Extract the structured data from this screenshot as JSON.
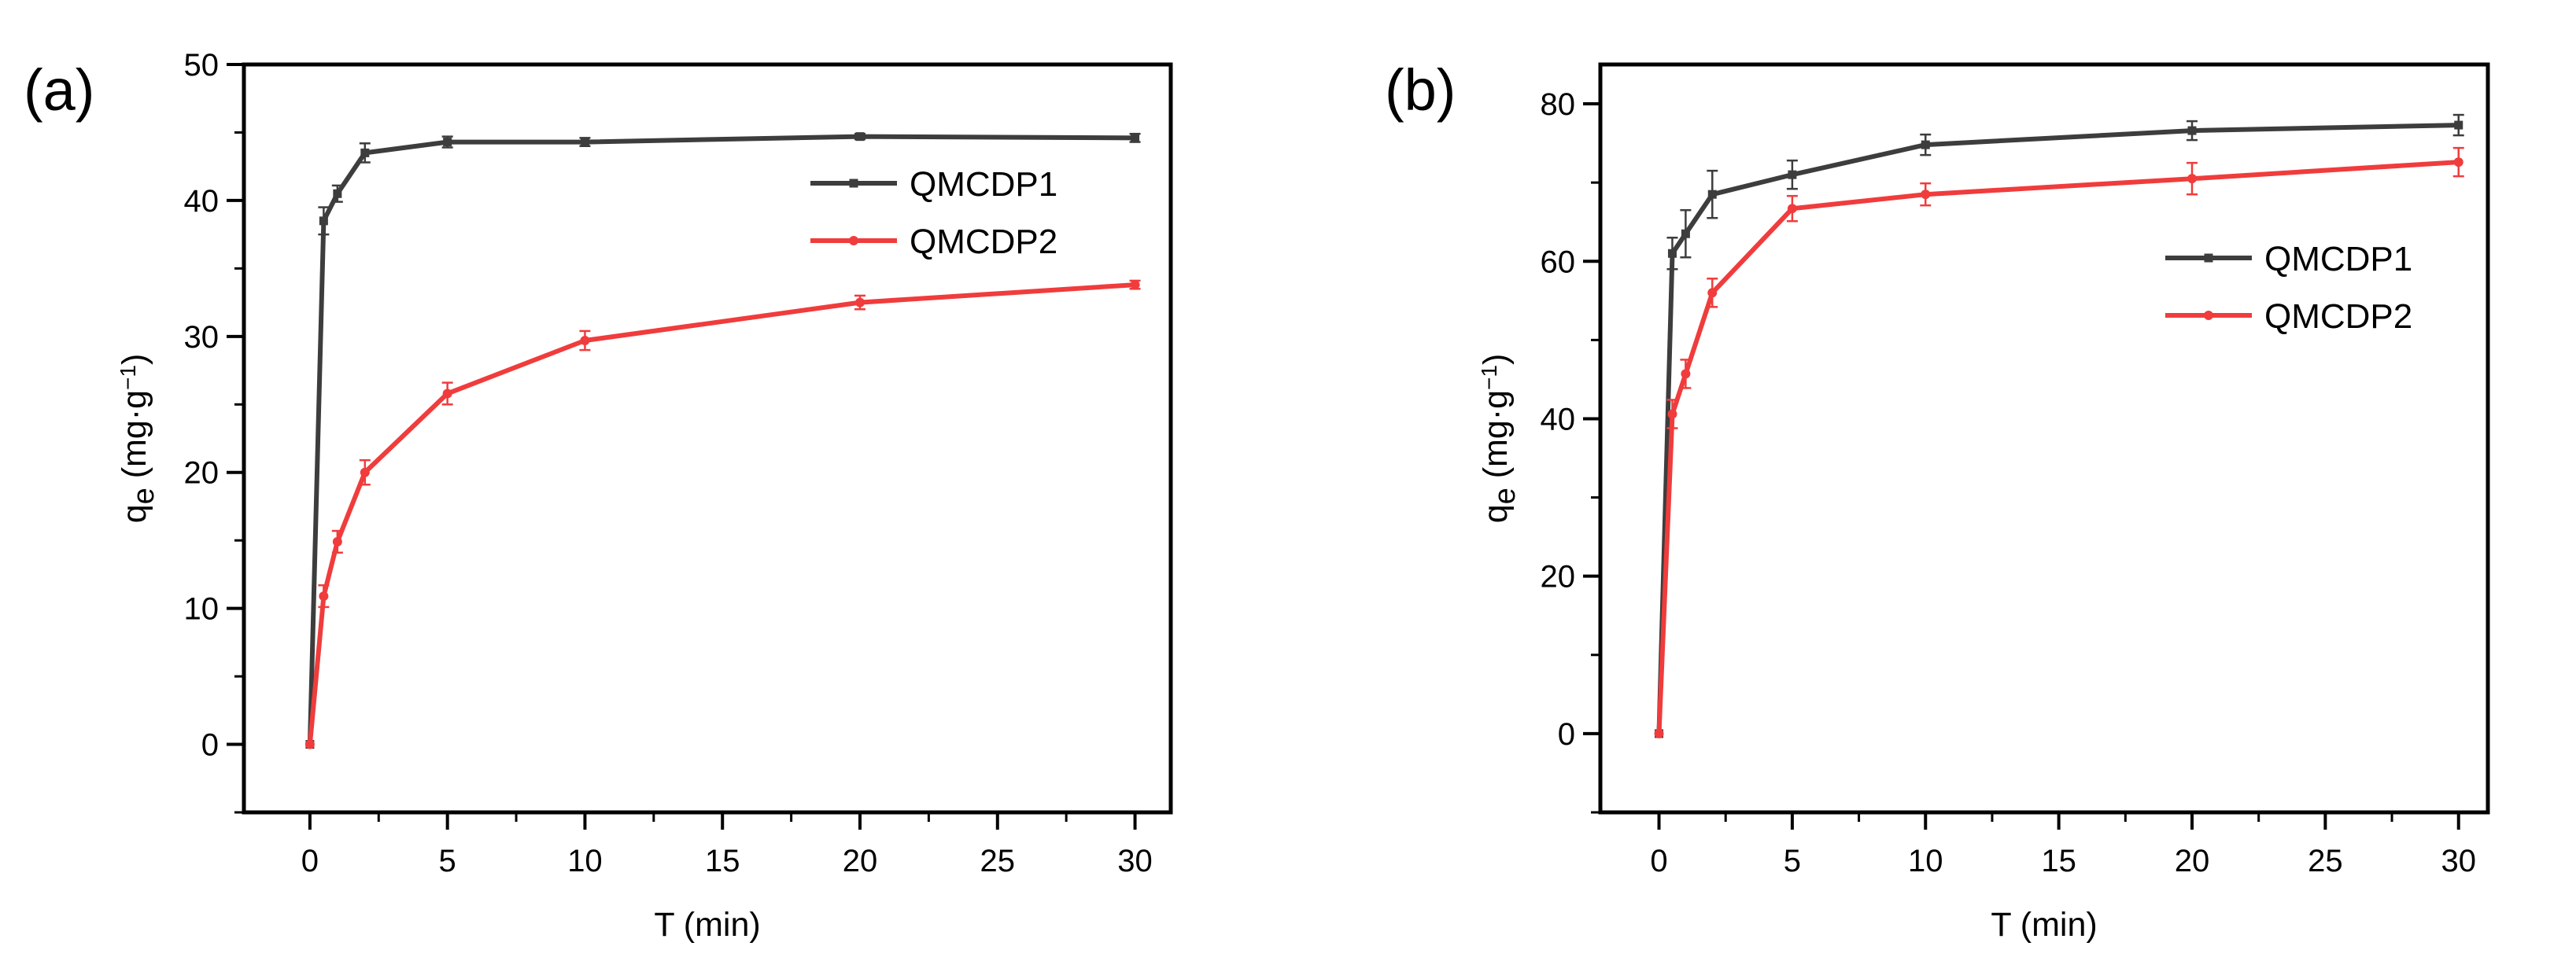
{
  "chart_data": [
    {
      "type": "line",
      "panel_label": "(a)",
      "xlabel": "T (min)",
      "ylabel": {
        "main": "q",
        "subscript": "e",
        "unit_open": " (mg·g",
        "unit_sup": "−1",
        "unit_close": ")"
      },
      "xlim": [
        -2.4,
        31.3
      ],
      "ylim": [
        -5,
        50
      ],
      "x_ticks": [
        0,
        5,
        10,
        15,
        20,
        25,
        30
      ],
      "y_ticks": [
        0,
        10,
        20,
        30,
        40,
        50
      ],
      "legend_position": "top-right",
      "series": [
        {
          "name": "QMCDP1",
          "color": "#3d3d3d",
          "marker": "square",
          "x": [
            0,
            0.5,
            1,
            2,
            5,
            10,
            20,
            30
          ],
          "y": [
            0,
            38.5,
            40.5,
            43.5,
            44.3,
            44.3,
            44.7,
            44.6
          ],
          "err": [
            0,
            1.0,
            0.6,
            0.7,
            0.4,
            0.3,
            0.2,
            0.3
          ]
        },
        {
          "name": "QMCDP2",
          "color": "#f03c3c",
          "marker": "circle",
          "x": [
            0,
            0.5,
            1,
            2,
            5,
            10,
            20,
            30
          ],
          "y": [
            0,
            10.9,
            14.9,
            20,
            25.8,
            29.7,
            32.5,
            33.8
          ],
          "err": [
            0,
            0.8,
            0.8,
            0.9,
            0.8,
            0.7,
            0.5,
            0.3
          ]
        }
      ]
    },
    {
      "type": "line",
      "panel_label": "(b)",
      "xlabel": "T (min)",
      "ylabel": {
        "main": "q",
        "subscript": "e",
        "unit_open": " (mg·g",
        "unit_sup": "−1",
        "unit_close": ")"
      },
      "xlim": [
        -2.2,
        31.1
      ],
      "ylim": [
        -10,
        85
      ],
      "x_ticks": [
        0,
        5,
        10,
        15,
        20,
        25,
        30
      ],
      "y_ticks": [
        0,
        20,
        40,
        60,
        80
      ],
      "legend_position": "upper-right",
      "series": [
        {
          "name": "QMCDP1",
          "color": "#3d3d3d",
          "marker": "square",
          "x": [
            0,
            0.5,
            1,
            2,
            5,
            10,
            20,
            30
          ],
          "y": [
            0,
            61,
            63.5,
            68.5,
            71,
            74.8,
            76.6,
            77.3
          ],
          "err": [
            0,
            2.0,
            3.0,
            3.0,
            1.8,
            1.3,
            1.2,
            1.3
          ]
        },
        {
          "name": "QMCDP2",
          "color": "#f03c3c",
          "marker": "circle",
          "x": [
            0,
            0.5,
            1,
            2,
            5,
            10,
            20,
            30
          ],
          "y": [
            0,
            40.6,
            45.7,
            56,
            66.7,
            68.5,
            70.5,
            72.6
          ],
          "err": [
            0,
            1.8,
            1.8,
            1.8,
            1.6,
            1.4,
            2.0,
            1.8
          ]
        }
      ]
    }
  ]
}
